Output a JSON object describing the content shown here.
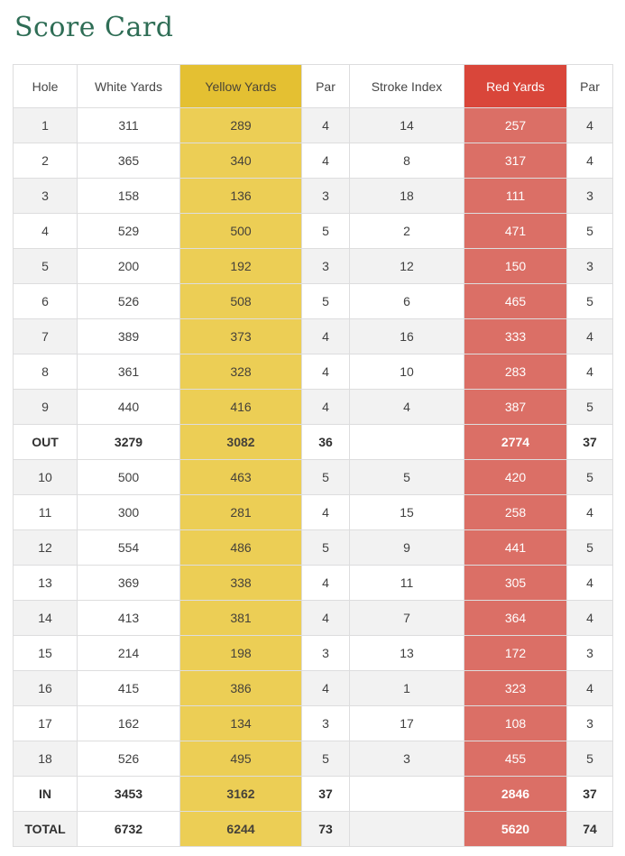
{
  "page": {
    "title": "Score Card"
  },
  "colors": {
    "title_green": "#2e6d55",
    "yellow_header": "#e4c032",
    "yellow_body": "#ecce55",
    "red_header": "#d9463a",
    "red_body": "#db6f66",
    "row_stripe": "#f2f2f2",
    "border": "#ddddde"
  },
  "table": {
    "columns": [
      {
        "key": "hole",
        "label": "Hole",
        "variant": "default"
      },
      {
        "key": "white",
        "label": "White Yards",
        "variant": "white"
      },
      {
        "key": "yellow",
        "label": "Yellow Yards",
        "variant": "yellow"
      },
      {
        "key": "par1",
        "label": "Par",
        "variant": "default"
      },
      {
        "key": "si",
        "label": "Stroke Index",
        "variant": "default"
      },
      {
        "key": "red",
        "label": "Red Yards",
        "variant": "red"
      },
      {
        "key": "par2",
        "label": "Par",
        "variant": "default"
      }
    ],
    "rows": [
      {
        "hole": "1",
        "white": "311",
        "yellow": "289",
        "par1": "4",
        "si": "14",
        "red": "257",
        "par2": "4",
        "bold": false
      },
      {
        "hole": "2",
        "white": "365",
        "yellow": "340",
        "par1": "4",
        "si": "8",
        "red": "317",
        "par2": "4",
        "bold": false
      },
      {
        "hole": "3",
        "white": "158",
        "yellow": "136",
        "par1": "3",
        "si": "18",
        "red": "111",
        "par2": "3",
        "bold": false
      },
      {
        "hole": "4",
        "white": "529",
        "yellow": "500",
        "par1": "5",
        "si": "2",
        "red": "471",
        "par2": "5",
        "bold": false
      },
      {
        "hole": "5",
        "white": "200",
        "yellow": "192",
        "par1": "3",
        "si": "12",
        "red": "150",
        "par2": "3",
        "bold": false
      },
      {
        "hole": "6",
        "white": "526",
        "yellow": "508",
        "par1": "5",
        "si": "6",
        "red": "465",
        "par2": "5",
        "bold": false
      },
      {
        "hole": "7",
        "white": "389",
        "yellow": "373",
        "par1": "4",
        "si": "16",
        "red": "333",
        "par2": "4",
        "bold": false
      },
      {
        "hole": "8",
        "white": "361",
        "yellow": "328",
        "par1": "4",
        "si": "10",
        "red": "283",
        "par2": "4",
        "bold": false
      },
      {
        "hole": "9",
        "white": "440",
        "yellow": "416",
        "par1": "4",
        "si": "4",
        "red": "387",
        "par2": "5",
        "bold": false
      },
      {
        "hole": "OUT",
        "white": "3279",
        "yellow": "3082",
        "par1": "36",
        "si": "",
        "red": "2774",
        "par2": "37",
        "bold": true
      },
      {
        "hole": "10",
        "white": "500",
        "yellow": "463",
        "par1": "5",
        "si": "5",
        "red": "420",
        "par2": "5",
        "bold": false
      },
      {
        "hole": "11",
        "white": "300",
        "yellow": "281",
        "par1": "4",
        "si": "15",
        "red": "258",
        "par2": "4",
        "bold": false
      },
      {
        "hole": "12",
        "white": "554",
        "yellow": "486",
        "par1": "5",
        "si": "9",
        "red": "441",
        "par2": "5",
        "bold": false
      },
      {
        "hole": "13",
        "white": "369",
        "yellow": "338",
        "par1": "4",
        "si": "11",
        "red": "305",
        "par2": "4",
        "bold": false
      },
      {
        "hole": "14",
        "white": "413",
        "yellow": "381",
        "par1": "4",
        "si": "7",
        "red": "364",
        "par2": "4",
        "bold": false
      },
      {
        "hole": "15",
        "white": "214",
        "yellow": "198",
        "par1": "3",
        "si": "13",
        "red": "172",
        "par2": "3",
        "bold": false
      },
      {
        "hole": "16",
        "white": "415",
        "yellow": "386",
        "par1": "4",
        "si": "1",
        "red": "323",
        "par2": "4",
        "bold": false
      },
      {
        "hole": "17",
        "white": "162",
        "yellow": "134",
        "par1": "3",
        "si": "17",
        "red": "108",
        "par2": "3",
        "bold": false
      },
      {
        "hole": "18",
        "white": "526",
        "yellow": "495",
        "par1": "5",
        "si": "3",
        "red": "455",
        "par2": "5",
        "bold": false
      },
      {
        "hole": "IN",
        "white": "3453",
        "yellow": "3162",
        "par1": "37",
        "si": "",
        "red": "2846",
        "par2": "37",
        "bold": true
      },
      {
        "hole": "TOTAL",
        "white": "6732",
        "yellow": "6244",
        "par1": "73",
        "si": "",
        "red": "5620",
        "par2": "74",
        "bold": true
      }
    ]
  }
}
